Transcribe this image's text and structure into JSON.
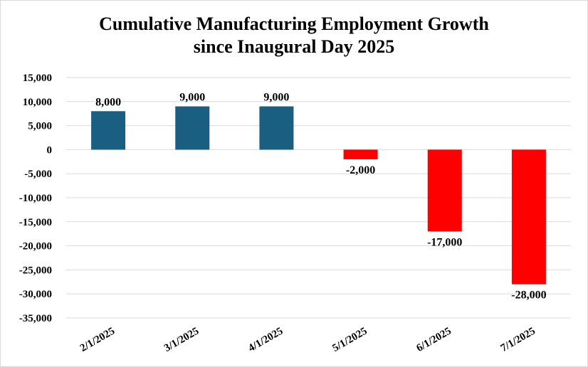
{
  "chart_data": {
    "type": "bar",
    "title_lines": [
      "Cumulative Manufacturing Employment Growth",
      "since Inaugural Day 2025"
    ],
    "categories": [
      "2/1/2025",
      "3/1/2025",
      "4/1/2025",
      "5/1/2025",
      "6/1/2025",
      "7/1/2025"
    ],
    "values": [
      8000,
      9000,
      9000,
      -2000,
      -17000,
      -28000
    ],
    "data_labels": [
      "8,000",
      "9,000",
      "9,000",
      "-2,000",
      "-17,000",
      "-28,000"
    ],
    "ylim": [
      -35000,
      15000
    ],
    "yticks": [
      15000,
      10000,
      5000,
      0,
      -5000,
      -10000,
      -15000,
      -20000,
      -25000,
      -30000,
      -35000
    ],
    "ytick_labels": [
      "15,000",
      "10,000",
      "5,000",
      "0",
      "-5,000",
      "-10,000",
      "-15,000",
      "-20,000",
      "-25,000",
      "-30,000",
      "-35,000"
    ],
    "grid": true,
    "xlabel": "",
    "ylabel": "",
    "colors": {
      "positive": "#1a5f82",
      "negative": "#ff0000",
      "grid": "#d9d9d9",
      "text": "#000000"
    }
  }
}
